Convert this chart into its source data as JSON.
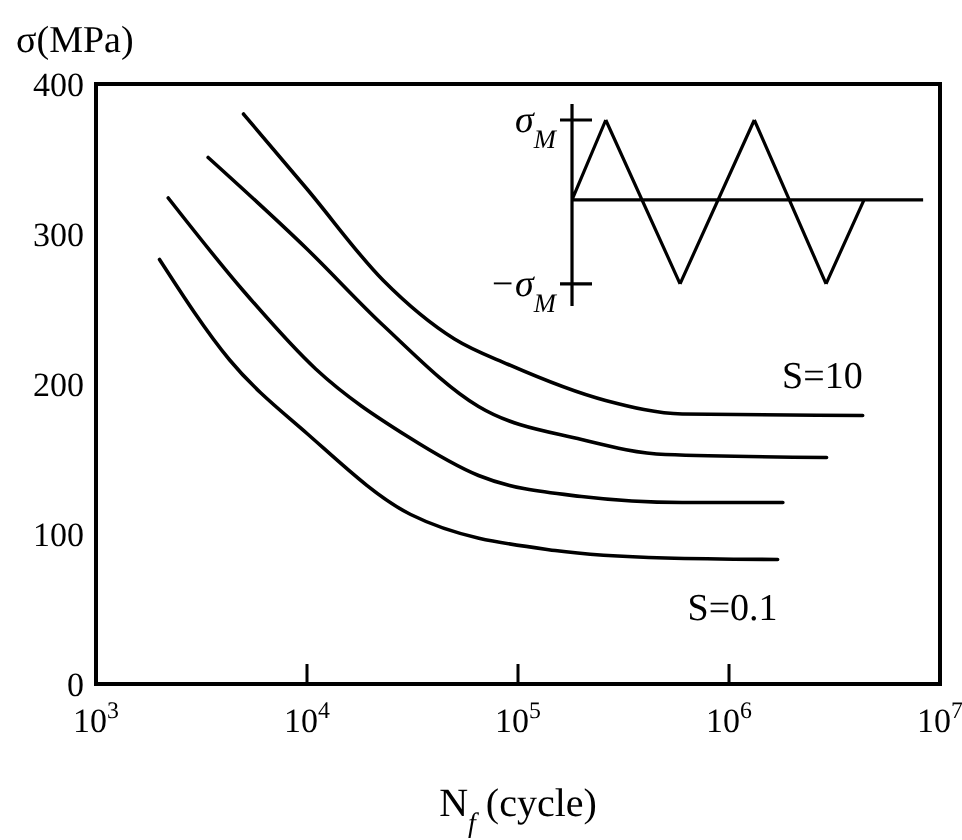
{
  "chart_data": {
    "type": "line",
    "xlabel": "N$_{f}$ (cycle)",
    "ylabel": "σ(MPa)",
    "log": "x",
    "grid": false,
    "marker": "none",
    "line_style": "solid",
    "xlim": [
      1000,
      10000000
    ],
    "ylim": [
      0,
      400
    ],
    "xticks": [
      {
        "value": 1000,
        "label": "10$^{3}$"
      },
      {
        "value": 10000,
        "label": "10$^{4}$"
      },
      {
        "value": 100000,
        "label": "10$^{5}$"
      },
      {
        "value": 1000000,
        "label": "10$^{6}$"
      },
      {
        "value": 10000000,
        "label": "10$^{7}$"
      }
    ],
    "yticks": [
      0,
      100,
      200,
      300,
      400
    ],
    "series": [
      {
        "name": "S=10",
        "color": "#000000",
        "x": [
          5000,
          10000,
          23000,
          50000,
          90000,
          260000,
          600000,
          4300000
        ],
        "values": [
          380,
          330,
          269,
          230,
          213,
          189,
          180,
          179
        ]
      },
      {
        "color": "#000000",
        "x": [
          3400,
          10000,
          23000,
          65000,
          200000,
          500000,
          2900000
        ],
        "values": [
          351,
          290,
          239,
          185,
          163,
          153,
          151
        ]
      },
      {
        "color": "#000000",
        "x": [
          2200,
          5000,
          11000,
          30000,
          65000,
          200000,
          600000,
          1800000
        ],
        "values": [
          324,
          262,
          210,
          165,
          139,
          125,
          121,
          121
        ]
      },
      {
        "name": "S=0.1",
        "color": "#000000",
        "x": [
          2000,
          4300,
          10000,
          31000,
          150000,
          500000,
          1700000
        ],
        "values": [
          283,
          216,
          167,
          113,
          89,
          84,
          83
        ]
      }
    ],
    "annotations": [
      "σ$_{M}$",
      "−σ$_{M}$"
    ]
  }
}
